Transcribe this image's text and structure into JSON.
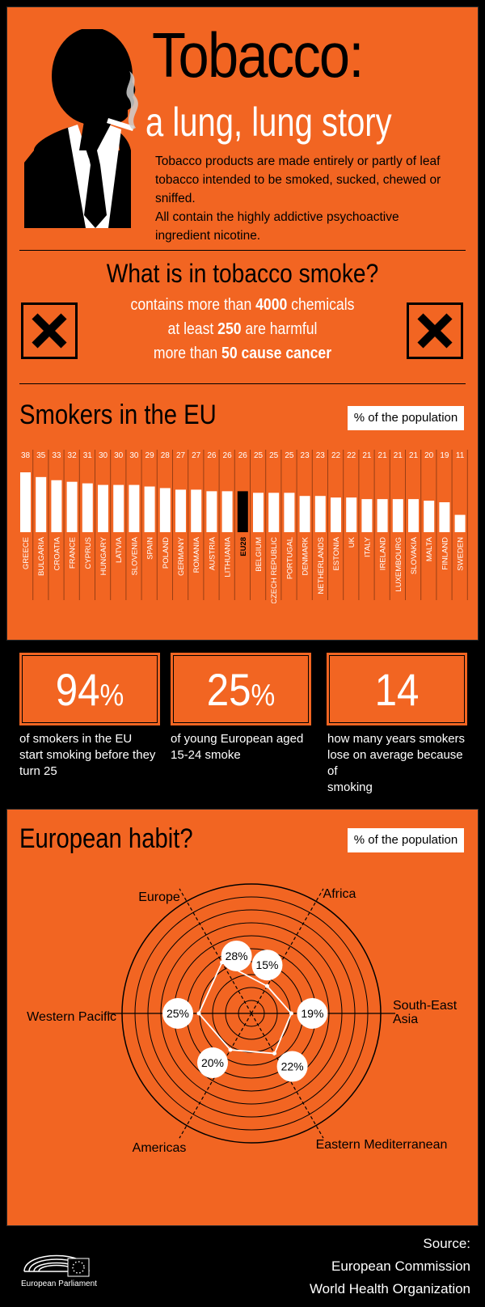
{
  "header": {
    "title": "Tobacco:",
    "subtitle": "a lung, lung story",
    "intro_lines": [
      "Tobacco products are made entirely or partly of leaf",
      "tobacco intended to be smoked, sucked, chewed or sniffed.",
      "All contain the highly  addictive psychoactive",
      "ingredient nicotine."
    ]
  },
  "smoke": {
    "title": "What is in tobacco smoke?",
    "line1_pre": "contains more than ",
    "line1_num": "4000",
    "line1_post": " chemicals",
    "line2_pre": "at least ",
    "line2_num": "250",
    "line2_post": " are harmful",
    "line3_pre": "more than ",
    "line3_bold": "50 cause cancer"
  },
  "smokers_eu": {
    "title": "Smokers in the EU",
    "tag": "% of the population",
    "highlight": "EU28"
  },
  "stats": [
    {
      "number": "94",
      "unit": "%",
      "text_lines": [
        "of smokers in the EU",
        "start smoking before they",
        "turn 25"
      ]
    },
    {
      "number": "25",
      "unit": "%",
      "text_lines": [
        "of young European aged",
        "15-24 smoke"
      ]
    },
    {
      "number": "14",
      "unit": "",
      "text_lines": [
        "how many years smokers",
        "lose on average because of",
        "smoking"
      ]
    }
  ],
  "habit": {
    "title": "European habit?",
    "tag": "% of the population"
  },
  "source": {
    "label": "Source:",
    "lines": [
      "European Commission",
      "World Health Organization"
    ]
  },
  "footer": {
    "logo_text": "European Parliament"
  },
  "colors": {
    "orange": "#f26522",
    "black": "#000000",
    "white": "#ffffff"
  },
  "chart_data": [
    {
      "type": "bar",
      "title": "Smokers in the EU",
      "ylabel": "% of the population",
      "categories": [
        "GREECE",
        "BULGARIA",
        "CROATIA",
        "FRANCE",
        "CYPRUS",
        "HUNGARY",
        "LATVIA",
        "SLOVENIA",
        "SPAIN",
        "POLAND",
        "GERMANY",
        "ROMANIA",
        "AUSTRIA",
        "LITHUANIA",
        "EU28",
        "BELGIUM",
        "CZECH REPUBLIC",
        "PORTUGAL",
        "DENMARK",
        "NETHERLANDS",
        "ESTONIA",
        "UK",
        "ITALY",
        "IRELAND",
        "LUXEMBOURG",
        "SLOVAKIA",
        "MALTA",
        "FINLAND",
        "SWEDEN"
      ],
      "values": [
        38,
        35,
        33,
        32,
        31,
        30,
        30,
        30,
        29,
        28,
        27,
        27,
        26,
        26,
        26,
        25,
        25,
        25,
        23,
        23,
        22,
        22,
        21,
        21,
        21,
        21,
        20,
        19,
        11
      ]
    },
    {
      "type": "radar",
      "title": "European habit?",
      "ylabel": "% of the population",
      "categories": [
        "Africa",
        "South-East Asia",
        "Eastern Mediterranean",
        "Americas",
        "Western Pacific",
        "Europe"
      ],
      "values": [
        15,
        19,
        22,
        20,
        25,
        28
      ],
      "labels": [
        "15%",
        "19%",
        "22%",
        "20%",
        "25%",
        "28%"
      ],
      "axis_label_lines": [
        [
          "Africa"
        ],
        [
          "South-East",
          "Asia"
        ],
        [
          "Eastern Mediterranean"
        ],
        [
          "Americas"
        ],
        [
          "Western Pacific"
        ],
        [
          "Europe"
        ]
      ]
    }
  ]
}
